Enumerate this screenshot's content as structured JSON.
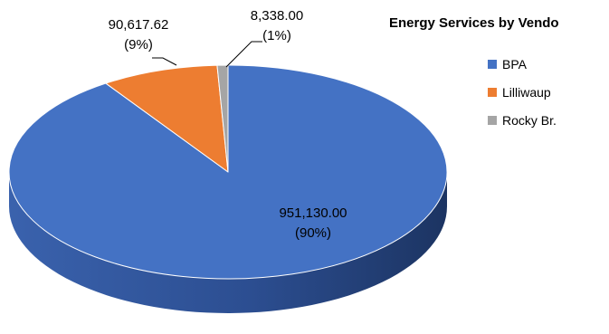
{
  "chart_data": {
    "type": "pie",
    "variant": "3d",
    "title": "Energy Services by Vendo",
    "legend_position": "right",
    "categories": [
      "BPA",
      "Lilliwaup",
      "Rocky Br."
    ],
    "values": [
      951130.0,
      90617.62,
      8338.0
    ],
    "value_labels": [
      "951,130.00",
      "90,617.62",
      "8,338.00"
    ],
    "percent_labels": [
      "(90%)",
      "(9%)",
      "(1%)"
    ],
    "colors": [
      "#4472c4",
      "#ed7d31",
      "#a5a5a5"
    ]
  }
}
